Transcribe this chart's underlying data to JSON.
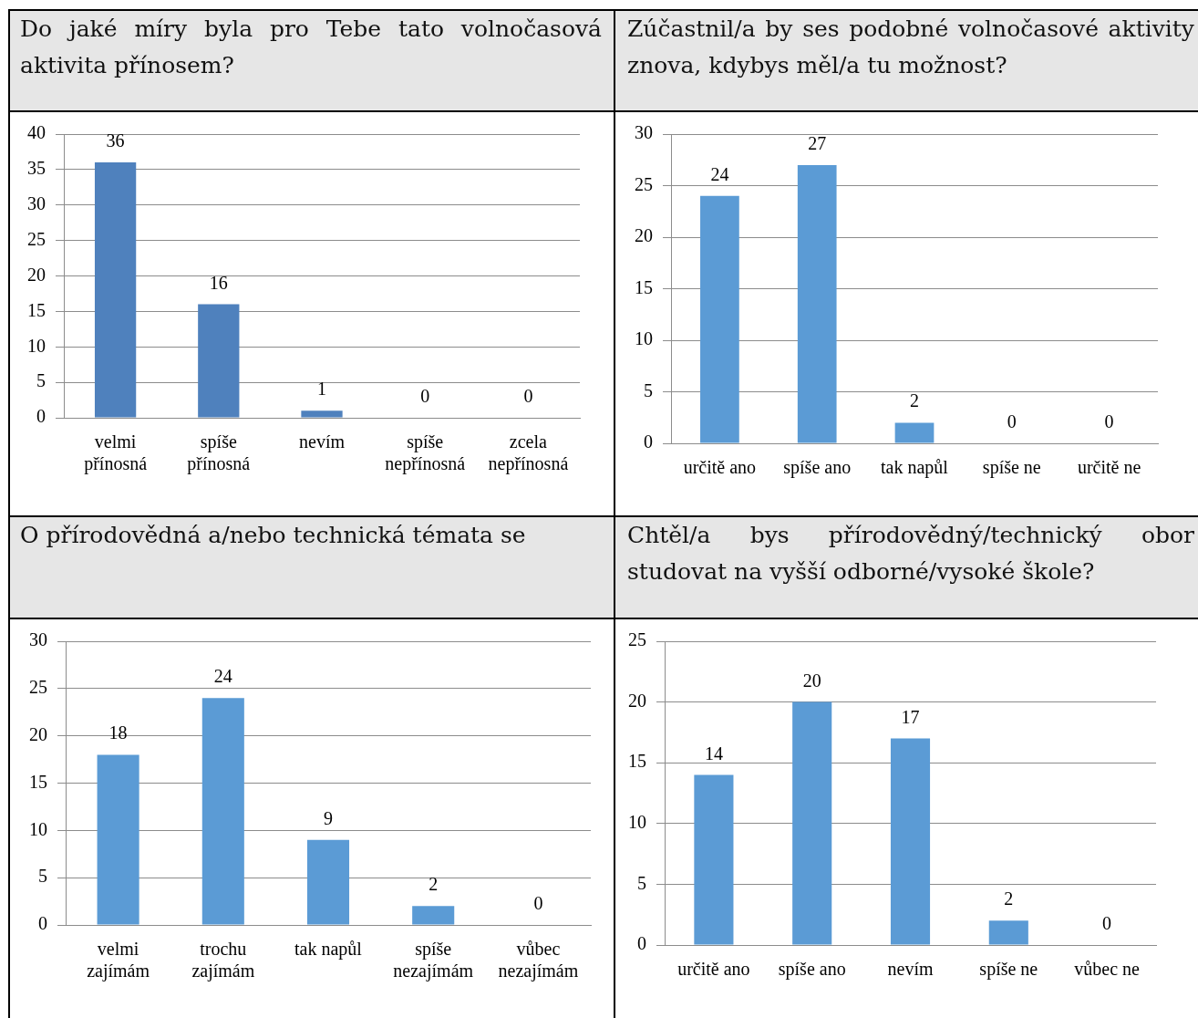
{
  "chart_data": [
    {
      "type": "bar",
      "title": "Do jaké míry byla pro Tebe tato volnočasová aktivita přínosem?",
      "categories": [
        "velmi přínosná",
        "spíše přínosná",
        "nevím",
        "spíše nepřínosná",
        "zcela nepřínosná"
      ],
      "values": [
        36,
        16,
        1,
        0,
        0
      ],
      "color": "#4f81bd",
      "ylim": [
        0,
        40
      ],
      "yticks": [
        0,
        5,
        10,
        15,
        20,
        25,
        30,
        35,
        40
      ],
      "grid": "y",
      "data_labels": true
    },
    {
      "type": "bar",
      "title": "Zúčastnil/a by ses podobné volnočasové aktivity znova, kdybys měl/a tu možnost?",
      "categories": [
        "určitě ano",
        "spíše ano",
        "tak napůl",
        "spíše ne",
        "určitě ne"
      ],
      "values": [
        24,
        27,
        2,
        0,
        0
      ],
      "color": "#5b9bd5",
      "ylim": [
        0,
        30
      ],
      "yticks": [
        0,
        5,
        10,
        15,
        20,
        25,
        30
      ],
      "grid": "y",
      "data_labels": true
    },
    {
      "type": "bar",
      "title": "O přírodovědná a/nebo technická témata se",
      "categories": [
        "velmi zajímám",
        "trochu zajímám",
        "tak napůl",
        "spíše nezajímám",
        "vůbec nezajímám"
      ],
      "values": [
        18,
        24,
        9,
        2,
        0
      ],
      "color": "#5b9bd5",
      "ylim": [
        0,
        30
      ],
      "yticks": [
        0,
        5,
        10,
        15,
        20,
        25,
        30
      ],
      "grid": "y",
      "data_labels": true
    },
    {
      "type": "bar",
      "title": "Chtěl/a bys přírodovědný/technický obor studovat na vyšší odborné/vysoké škole?",
      "categories": [
        "určitě ano",
        "spíše ano",
        "nevím",
        "spíše ne",
        "vůbec ne"
      ],
      "values": [
        14,
        20,
        17,
        2,
        0
      ],
      "color": "#5b9bd5",
      "ylim": [
        0,
        25
      ],
      "yticks": [
        0,
        5,
        10,
        15,
        20,
        25
      ],
      "grid": "y",
      "data_labels": true
    }
  ]
}
